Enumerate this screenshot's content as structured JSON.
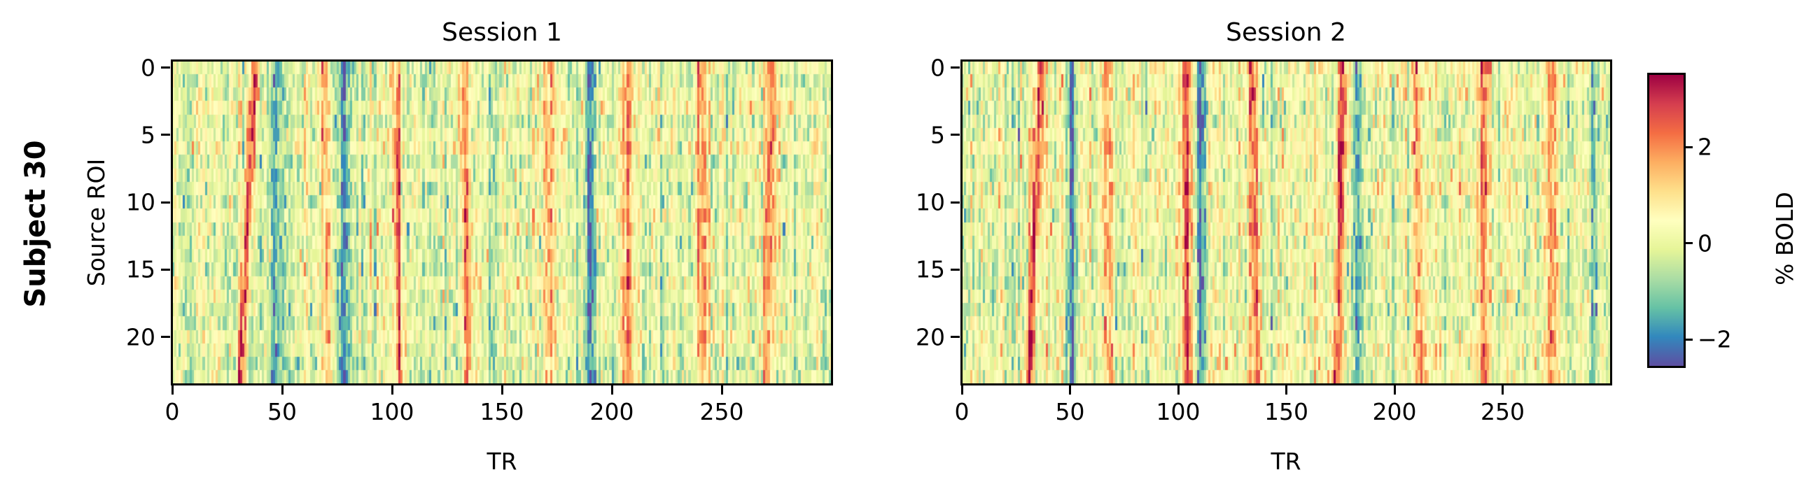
{
  "figure": {
    "row_label": "Subject 30",
    "ylabel": "Source ROI",
    "xlabel": "TR",
    "colorbar_label": "% BOLD"
  },
  "panels": [
    {
      "title": "Session 1"
    },
    {
      "title": "Session 2"
    }
  ],
  "x_ticks": [
    "0",
    "50",
    "100",
    "150",
    "200",
    "250"
  ],
  "y_ticks": [
    "0",
    "5",
    "10",
    "15",
    "20"
  ],
  "colorbar_ticks": [
    "2",
    "0",
    "−2"
  ],
  "chart_data": [
    {
      "type": "heatmap",
      "title": "Session 1",
      "xlabel": "TR",
      "ylabel": "Source ROI",
      "rows": 24,
      "cols": 300,
      "x_ticks": [
        0,
        50,
        100,
        150,
        200,
        250
      ],
      "y_ticks": [
        0,
        5,
        10,
        15,
        20
      ],
      "colormap": "Spectral_r",
      "vmin": -2.55,
      "vmax": 3.5,
      "colorbar_label": "% BOLD",
      "colorbar_ticks": [
        -2,
        0,
        2
      ],
      "events_note": "Dominant column structure: positive peaks (red) and negative troughs (blue) at approximate TR positions; 'drift' is TR shift from row 0 to row 23.",
      "peaks": [
        {
          "tr": 37,
          "amp": 3.3,
          "width": 1.6,
          "drift": -6
        },
        {
          "tr": 69,
          "amp": 2.0,
          "width": 1.8,
          "drift": 2
        },
        {
          "tr": 101,
          "amp": 2.0,
          "width": 1.8,
          "drift": 2
        },
        {
          "tr": 132,
          "amp": 2.0,
          "width": 1.8,
          "drift": 2
        },
        {
          "tr": 172,
          "amp": 2.0,
          "width": 2.2,
          "drift": 0
        },
        {
          "tr": 206,
          "amp": 2.1,
          "width": 2.0,
          "drift": 0
        },
        {
          "tr": 240,
          "amp": 2.1,
          "width": 2.0,
          "drift": 1
        },
        {
          "tr": 272,
          "amp": 2.3,
          "width": 1.8,
          "drift": -2
        }
      ],
      "troughs": [
        {
          "tr": 47,
          "amp": -1.0,
          "width": 3.0,
          "drift": 0
        },
        {
          "tr": 78,
          "amp": -1.9,
          "width": 2.5,
          "drift": 0
        },
        {
          "tr": 190,
          "amp": -2.3,
          "width": 1.5,
          "drift": 0
        },
        {
          "tr": 145,
          "amp": -0.9,
          "width": 2.0,
          "drift": 0
        }
      ],
      "noise_sd": 0.75,
      "seed": 11
    },
    {
      "type": "heatmap",
      "title": "Session 2",
      "xlabel": "TR",
      "ylabel": "",
      "rows": 24,
      "cols": 300,
      "x_ticks": [
        0,
        50,
        100,
        150,
        200,
        250
      ],
      "y_ticks": [
        0,
        5,
        10,
        15,
        20
      ],
      "colormap": "Spectral_r",
      "vmin": -2.55,
      "vmax": 3.5,
      "colorbar_label": "% BOLD",
      "colorbar_ticks": [
        -2,
        0,
        2
      ],
      "peaks": [
        {
          "tr": 36,
          "amp": 3.2,
          "width": 1.5,
          "drift": -5
        },
        {
          "tr": 67,
          "amp": 2.0,
          "width": 1.8,
          "drift": 1
        },
        {
          "tr": 103,
          "amp": 2.2,
          "width": 1.8,
          "drift": 1
        },
        {
          "tr": 134,
          "amp": 2.2,
          "width": 1.8,
          "drift": 2
        },
        {
          "tr": 176,
          "amp": 2.4,
          "width": 1.8,
          "drift": -3
        },
        {
          "tr": 210,
          "amp": 2.2,
          "width": 1.8,
          "drift": 2
        },
        {
          "tr": 241,
          "amp": 2.2,
          "width": 1.8,
          "drift": 0
        },
        {
          "tr": 272,
          "amp": 2.1,
          "width": 1.8,
          "drift": 0
        }
      ],
      "troughs": [
        {
          "tr": 50,
          "amp": -1.8,
          "width": 1.6,
          "drift": 0
        },
        {
          "tr": 110,
          "amp": -1.9,
          "width": 1.5,
          "drift": 0
        },
        {
          "tr": 183,
          "amp": -1.3,
          "width": 1.5,
          "drift": 0
        },
        {
          "tr": 292,
          "amp": -1.5,
          "width": 1.2,
          "drift": 0
        }
      ],
      "noise_sd": 0.75,
      "seed": 23
    }
  ]
}
